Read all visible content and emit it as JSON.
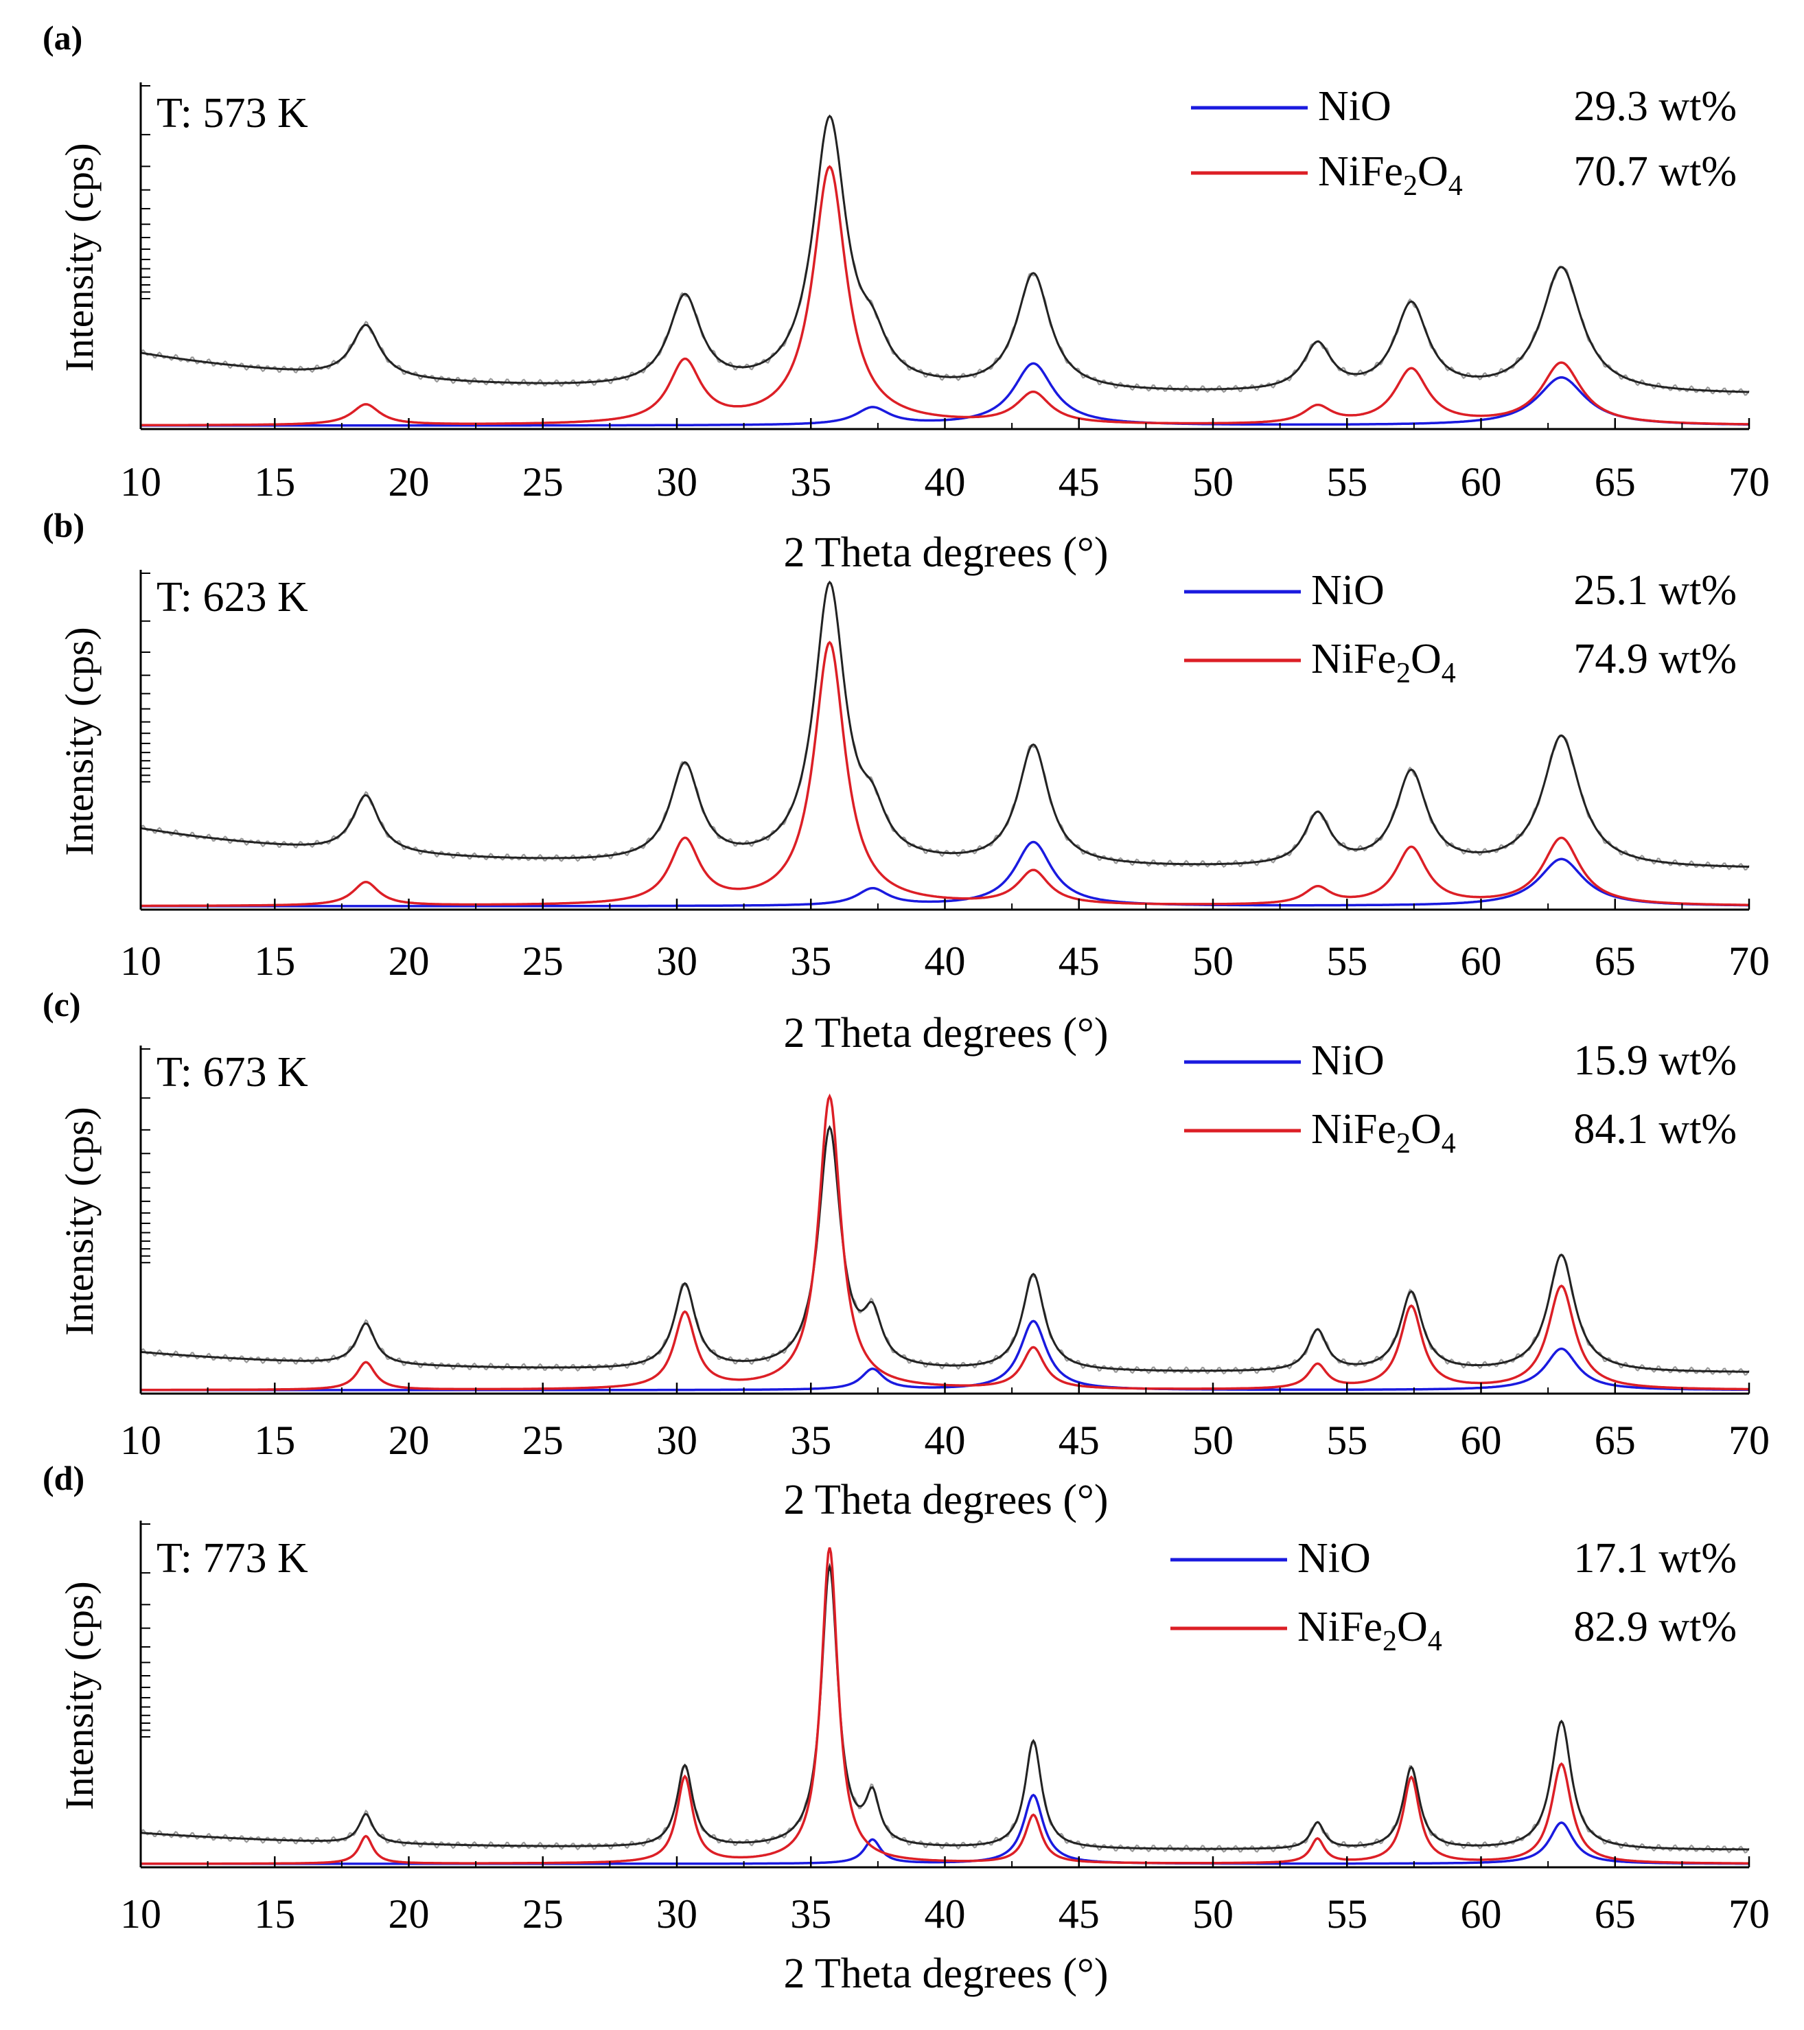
{
  "figure": {
    "x_ticks": [
      10,
      15,
      20,
      25,
      30,
      35,
      40,
      45,
      50,
      55,
      60,
      65,
      70
    ],
    "xlabel": "2 Theta degrees (°)",
    "ylabel": "Intensity (cps)",
    "unit_suffix": "wt%",
    "colors": {
      "nio": "#1a1adf",
      "nife2o4": "#dc1f26",
      "observed": "#9a9a9a",
      "calculated": "#222222",
      "axis": "#000000"
    }
  },
  "chart_data": [
    {
      "type": "line",
      "panel_label": "(a)",
      "temperature_label": "T: 573 K",
      "xlabel": "2 Theta degrees (°)",
      "ylabel": "Intensity (cps)",
      "xlim": [
        10,
        70
      ],
      "grid": false,
      "legend_position": "top-right",
      "phases": [
        {
          "formula": "NiO",
          "wt_percent": "29.3 wt%"
        },
        {
          "formula": "NiFe2O4",
          "base": "NiFe",
          "sub1": "2",
          "mid": "O",
          "sub2": "4",
          "wt_percent": "70.7 wt%"
        }
      ],
      "peak_positions": [
        18.4,
        30.3,
        35.7,
        37.3,
        43.3,
        53.9,
        57.4,
        63.0
      ],
      "approx_peak_heights": {
        "NiFe2O4": [
          0.06,
          0.18,
          0.75,
          0.0,
          0.09,
          0.05,
          0.16,
          0.18
        ],
        "NiO": [
          0.0,
          0.0,
          0.0,
          0.05,
          0.18,
          0.0,
          0.0,
          0.14
        ],
        "total": [
          0.18,
          0.31,
          0.92,
          0.12,
          0.4,
          0.16,
          0.3,
          0.43
        ]
      }
    },
    {
      "type": "line",
      "panel_label": "(b)",
      "temperature_label": "T: 623 K",
      "xlabel": "2 Theta degrees (°)",
      "ylabel": "Intensity (cps)",
      "xlim": [
        10,
        70
      ],
      "grid": false,
      "legend_position": "top-right",
      "phases": [
        {
          "formula": "NiO",
          "wt_percent": "25.1 wt%"
        },
        {
          "formula": "NiFe2O4",
          "base": "NiFe",
          "sub1": "2",
          "mid": "O",
          "sub2": "4",
          "wt_percent": "74.9 wt%"
        }
      ],
      "peak_positions": [
        18.4,
        30.3,
        35.7,
        37.3,
        43.3,
        53.9,
        57.4,
        63.0
      ],
      "approx_peak_heights": {
        "NiFe2O4": [
          0.07,
          0.19,
          0.78,
          0.0,
          0.1,
          0.05,
          0.17,
          0.2
        ],
        "NiO": [
          0.0,
          0.0,
          0.0,
          0.05,
          0.19,
          0.0,
          0.0,
          0.14
        ],
        "total": [
          0.2,
          0.34,
          0.97,
          0.13,
          0.42,
          0.18,
          0.33,
          0.46
        ]
      }
    },
    {
      "type": "line",
      "panel_label": "(c)",
      "temperature_label": "T: 673 K",
      "xlabel": "2 Theta degrees (°)",
      "ylabel": "Intensity (cps)",
      "xlim": [
        10,
        70
      ],
      "grid": false,
      "legend_position": "top-right",
      "phases": [
        {
          "formula": "NiO",
          "wt_percent": "15.9 wt%"
        },
        {
          "formula": "NiFe2O4",
          "base": "NiFe",
          "sub1": "2",
          "mid": "O",
          "sub2": "4",
          "wt_percent": "84.1 wt%"
        }
      ],
      "peak_positions": [
        18.4,
        30.3,
        35.7,
        37.3,
        43.3,
        53.9,
        57.4,
        63.0
      ],
      "approx_peak_heights": {
        "NiFe2O4": [
          0.08,
          0.22,
          0.85,
          0.0,
          0.12,
          0.07,
          0.24,
          0.3
        ],
        "NiO": [
          0.0,
          0.0,
          0.0,
          0.06,
          0.2,
          0.0,
          0.0,
          0.12
        ],
        "total": [
          0.14,
          0.29,
          0.82,
          0.16,
          0.33,
          0.14,
          0.27,
          0.4
        ]
      }
    },
    {
      "type": "line",
      "panel_label": "(d)",
      "temperature_label": "T: 773 K",
      "xlabel": "2 Theta degrees (°)",
      "ylabel": "Intensity (cps)",
      "xlim": [
        10,
        70
      ],
      "grid": false,
      "legend_position": "top-right",
      "phases": [
        {
          "formula": "NiO",
          "wt_percent": "17.1 wt%"
        },
        {
          "formula": "NiFe2O4",
          "base": "NiFe",
          "sub1": "2",
          "mid": "O",
          "sub2": "4",
          "wt_percent": "82.9 wt%"
        }
      ],
      "peak_positions": [
        18.4,
        30.3,
        35.7,
        37.3,
        43.3,
        53.9,
        57.4,
        63.0
      ],
      "approx_peak_heights": {
        "NiFe2O4": [
          0.08,
          0.25,
          0.92,
          0.0,
          0.14,
          0.07,
          0.25,
          0.29
        ],
        "NiO": [
          0.0,
          0.0,
          0.0,
          0.07,
          0.2,
          0.0,
          0.0,
          0.12
        ],
        "total": [
          0.1,
          0.28,
          0.96,
          0.16,
          0.37,
          0.09,
          0.28,
          0.44
        ]
      }
    }
  ]
}
